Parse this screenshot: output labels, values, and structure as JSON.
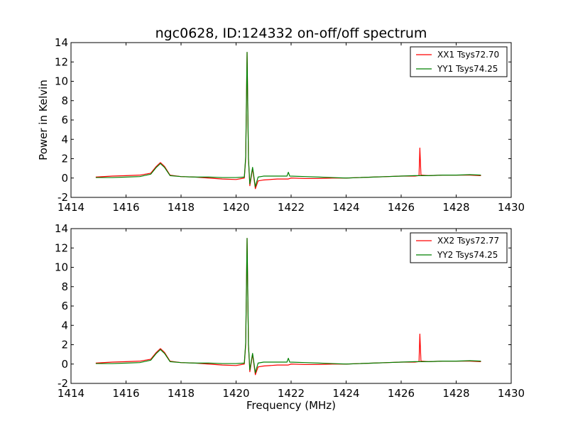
{
  "figure": {
    "title": "ngc0628, ID:124332 on-off/off spectrum"
  },
  "chart_data": [
    {
      "type": "line",
      "title": "ngc0628, ID:124332 on-off/off spectrum",
      "xlabel": "",
      "ylabel": "Power in Kelvin",
      "xlim": [
        1414,
        1430
      ],
      "ylim": [
        -2,
        14
      ],
      "xticks": [
        1414,
        1416,
        1418,
        1420,
        1422,
        1424,
        1426,
        1428,
        1430
      ],
      "yticks": [
        -2,
        0,
        2,
        4,
        6,
        8,
        10,
        12,
        14
      ],
      "grid": false,
      "legend_position": "top-right",
      "series": [
        {
          "name": "XX1 Tsys72.70",
          "color": "#ff0000",
          "x": [
            1414.9,
            1415.5,
            1416.0,
            1416.5,
            1416.9,
            1417.1,
            1417.25,
            1417.4,
            1417.6,
            1418.0,
            1418.5,
            1419.0,
            1419.5,
            1420.0,
            1420.3,
            1420.35,
            1420.4,
            1420.45,
            1420.5,
            1420.6,
            1420.7,
            1420.8,
            1421.0,
            1421.5,
            1421.9,
            1422.0,
            1422.5,
            1423.0,
            1423.5,
            1424.0,
            1424.5,
            1425.0,
            1425.5,
            1426.0,
            1426.5,
            1426.65,
            1426.68,
            1426.72,
            1427.0,
            1427.5,
            1428.0,
            1428.5,
            1428.9
          ],
          "y": [
            0.1,
            0.2,
            0.25,
            0.3,
            0.5,
            1.2,
            1.6,
            1.2,
            0.3,
            0.15,
            0.1,
            0.0,
            -0.1,
            -0.15,
            0.0,
            2.0,
            13.0,
            2.0,
            -0.8,
            1.0,
            -1.1,
            -0.3,
            -0.2,
            -0.1,
            -0.1,
            0.0,
            -0.05,
            -0.05,
            0.0,
            0.0,
            0.05,
            0.1,
            0.15,
            0.2,
            0.2,
            0.25,
            3.1,
            0.3,
            0.25,
            0.3,
            0.3,
            0.3,
            0.25
          ]
        },
        {
          "name": "YY1 Tsys74.25",
          "color": "#008000",
          "x": [
            1414.9,
            1415.5,
            1416.0,
            1416.5,
            1416.9,
            1417.1,
            1417.25,
            1417.4,
            1417.6,
            1418.0,
            1418.5,
            1419.0,
            1419.5,
            1420.0,
            1420.3,
            1420.35,
            1420.4,
            1420.45,
            1420.5,
            1420.6,
            1420.7,
            1420.8,
            1421.0,
            1421.5,
            1421.85,
            1421.9,
            1421.95,
            1422.5,
            1423.0,
            1423.5,
            1424.0,
            1424.5,
            1425.0,
            1425.5,
            1426.0,
            1426.5,
            1427.0,
            1427.5,
            1428.0,
            1428.5,
            1428.9
          ],
          "y": [
            0.05,
            0.05,
            0.1,
            0.15,
            0.4,
            1.1,
            1.5,
            1.1,
            0.25,
            0.15,
            0.1,
            0.1,
            0.05,
            0.05,
            0.1,
            2.2,
            13.0,
            2.0,
            -0.6,
            1.1,
            -0.9,
            0.1,
            0.2,
            0.2,
            0.2,
            0.6,
            0.2,
            0.15,
            0.1,
            0.05,
            0.0,
            0.05,
            0.1,
            0.15,
            0.2,
            0.25,
            0.25,
            0.3,
            0.3,
            0.35,
            0.3
          ]
        }
      ]
    },
    {
      "type": "line",
      "title": "",
      "xlabel": "Frequency (MHz)",
      "ylabel": "",
      "xlim": [
        1414,
        1430
      ],
      "ylim": [
        -2,
        14
      ],
      "xticks": [
        1414,
        1416,
        1418,
        1420,
        1422,
        1424,
        1426,
        1428,
        1430
      ],
      "yticks": [
        -2,
        0,
        2,
        4,
        6,
        8,
        10,
        12,
        14
      ],
      "grid": false,
      "legend_position": "top-right",
      "series": [
        {
          "name": "XX2 Tsys72.77",
          "color": "#ff0000",
          "x": [
            1414.9,
            1415.5,
            1416.0,
            1416.5,
            1416.9,
            1417.1,
            1417.25,
            1417.4,
            1417.6,
            1418.0,
            1418.5,
            1419.0,
            1419.5,
            1420.0,
            1420.3,
            1420.35,
            1420.4,
            1420.45,
            1420.5,
            1420.6,
            1420.7,
            1420.8,
            1421.0,
            1421.5,
            1421.9,
            1422.0,
            1422.5,
            1423.0,
            1423.5,
            1424.0,
            1424.5,
            1425.0,
            1425.5,
            1426.0,
            1426.5,
            1426.65,
            1426.68,
            1426.72,
            1427.0,
            1427.5,
            1428.0,
            1428.5,
            1428.9
          ],
          "y": [
            0.1,
            0.2,
            0.25,
            0.3,
            0.5,
            1.2,
            1.6,
            1.2,
            0.3,
            0.15,
            0.1,
            0.0,
            -0.1,
            -0.15,
            0.0,
            2.0,
            13.0,
            2.0,
            -0.8,
            1.0,
            -1.1,
            -0.3,
            -0.2,
            -0.1,
            -0.1,
            0.0,
            -0.05,
            -0.05,
            0.0,
            0.0,
            0.05,
            0.1,
            0.15,
            0.2,
            0.2,
            0.25,
            3.1,
            0.3,
            0.25,
            0.3,
            0.3,
            0.3,
            0.25
          ]
        },
        {
          "name": "YY2 Tsys74.25",
          "color": "#008000",
          "x": [
            1414.9,
            1415.5,
            1416.0,
            1416.5,
            1416.9,
            1417.1,
            1417.25,
            1417.4,
            1417.6,
            1418.0,
            1418.5,
            1419.0,
            1419.5,
            1420.0,
            1420.3,
            1420.35,
            1420.4,
            1420.45,
            1420.5,
            1420.6,
            1420.7,
            1420.8,
            1421.0,
            1421.5,
            1421.85,
            1421.9,
            1421.95,
            1422.5,
            1423.0,
            1423.5,
            1424.0,
            1424.5,
            1425.0,
            1425.5,
            1426.0,
            1426.5,
            1427.0,
            1427.5,
            1428.0,
            1428.5,
            1428.9
          ],
          "y": [
            0.05,
            0.05,
            0.1,
            0.15,
            0.4,
            1.1,
            1.5,
            1.1,
            0.25,
            0.15,
            0.1,
            0.1,
            0.05,
            0.05,
            0.1,
            2.2,
            13.0,
            2.0,
            -0.6,
            1.1,
            -0.9,
            0.1,
            0.2,
            0.2,
            0.2,
            0.6,
            0.2,
            0.15,
            0.1,
            0.05,
            0.0,
            0.05,
            0.1,
            0.15,
            0.2,
            0.25,
            0.25,
            0.3,
            0.3,
            0.35,
            0.3
          ]
        }
      ]
    }
  ]
}
